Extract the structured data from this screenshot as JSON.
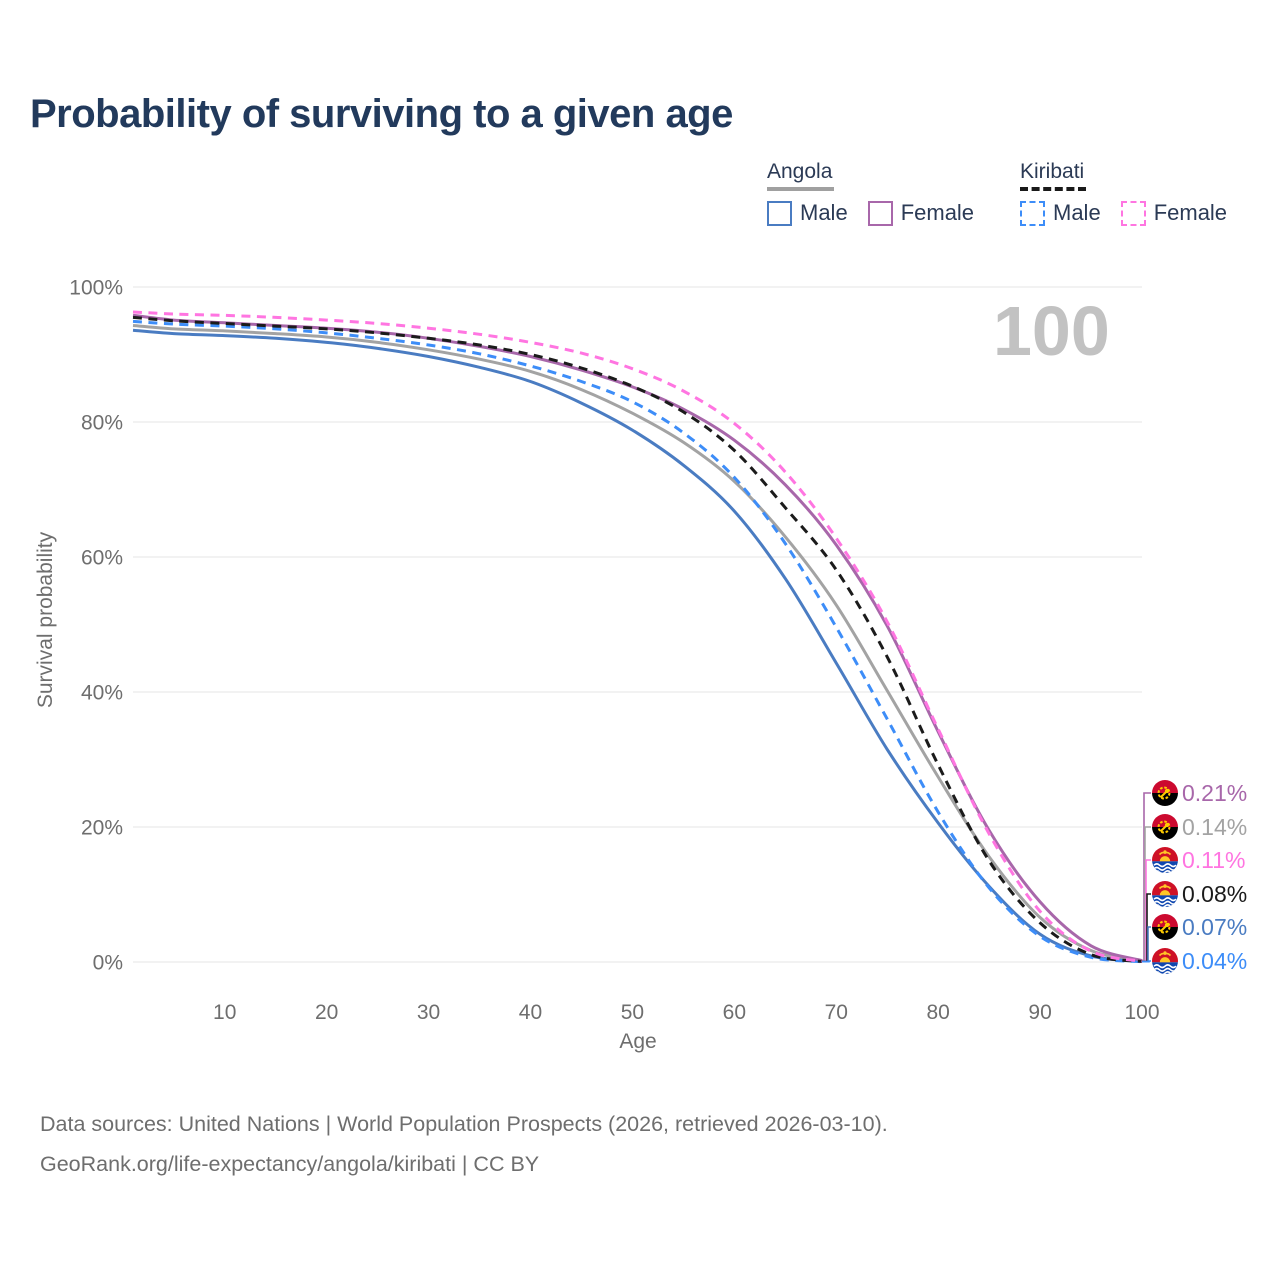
{
  "page": {
    "title": "Probability of surviving to a given age"
  },
  "legend": {
    "groups": [
      {
        "label": "Angola",
        "underline_color": "#a0a0a0",
        "underline_style": "solid",
        "items": [
          {
            "label": "Male",
            "color": "#4a7cc2",
            "dashed": false
          },
          {
            "label": "Female",
            "color": "#a867aa",
            "dashed": false
          }
        ]
      },
      {
        "label": "Kiribati",
        "underline_color": "#1a1a1a",
        "underline_style": "dashed",
        "items": [
          {
            "label": "Male",
            "color": "#3d8df8",
            "dashed": true
          },
          {
            "label": "Female",
            "color": "#ff75e1",
            "dashed": true
          }
        ]
      }
    ]
  },
  "chart_data": {
    "type": "line",
    "title": "Probability of surviving to a given age",
    "xlabel": "Age",
    "ylabel": "Survival probability",
    "watermark": "100",
    "x_domain": [
      1,
      100
    ],
    "ylim": [
      0,
      100
    ],
    "x_ticks": [
      10,
      20,
      30,
      40,
      50,
      60,
      70,
      80,
      90,
      100
    ],
    "y_ticks": [
      0,
      20,
      40,
      60,
      80,
      100
    ],
    "y_tick_suffix": "%",
    "grid": "horizontal",
    "legend_position": "top-right",
    "x": [
      1,
      5,
      10,
      15,
      20,
      25,
      30,
      35,
      40,
      45,
      50,
      55,
      60,
      65,
      70,
      75,
      80,
      85,
      90,
      95,
      100
    ],
    "series": [
      {
        "name": "Angola Male",
        "country": "Angola",
        "sex": "Male",
        "color": "#4a7cc2",
        "dashed": false,
        "end_label": "0.07%",
        "values": [
          93.6,
          93.1,
          92.8,
          92.4,
          91.8,
          90.9,
          89.7,
          88.1,
          86.0,
          82.8,
          78.8,
          73.6,
          66.8,
          56.8,
          44.3,
          31.5,
          20.6,
          11.2,
          4.1,
          0.9,
          0.07
        ]
      },
      {
        "name": "Angola Female",
        "country": "Angola",
        "sex": "Female",
        "color": "#a867aa",
        "dashed": false,
        "end_label": "0.21%",
        "values": [
          95.8,
          95.1,
          94.7,
          94.3,
          93.9,
          93.3,
          92.4,
          91.2,
          89.7,
          87.7,
          85.2,
          81.9,
          77.3,
          70.7,
          61.8,
          49.8,
          34.1,
          19.5,
          8.9,
          2.4,
          0.21
        ]
      },
      {
        "name": "Angola Both sexes",
        "country": "Angola",
        "sex": "Both",
        "color": "#a3a3a3",
        "dashed": false,
        "end_label": "0.14%",
        "values": [
          94.3,
          93.8,
          93.5,
          93.1,
          92.6,
          91.8,
          90.7,
          89.3,
          87.5,
          84.8,
          81.3,
          77.0,
          71.2,
          63.0,
          52.9,
          40.2,
          27.4,
          15.6,
          6.6,
          1.7,
          0.14
        ]
      },
      {
        "name": "Kiribati Male",
        "country": "Kiribati",
        "sex": "Male",
        "color": "#3d8df8",
        "dashed": true,
        "end_label": "0.04%",
        "values": [
          94.9,
          94.5,
          94.2,
          93.8,
          93.2,
          92.4,
          91.4,
          90.1,
          88.3,
          86.0,
          83.0,
          78.4,
          71.8,
          62.0,
          49.6,
          36.0,
          22.2,
          11.0,
          3.8,
          0.7,
          0.04
        ]
      },
      {
        "name": "Kiribati Both sexes",
        "country": "Kiribati",
        "sex": "Both",
        "color": "#1b1b1b",
        "dashed": true,
        "end_label": "0.08%",
        "values": [
          95.5,
          95.0,
          94.6,
          94.2,
          93.8,
          93.2,
          92.4,
          91.4,
          90.0,
          88.0,
          85.3,
          81.5,
          75.8,
          67.3,
          58.1,
          45.2,
          29.2,
          15.0,
          5.8,
          1.1,
          0.08
        ]
      },
      {
        "name": "Kiribati Female",
        "country": "Kiribati",
        "sex": "Female",
        "color": "#ff75e1",
        "dashed": true,
        "end_label": "0.11%",
        "values": [
          96.3,
          96.0,
          95.8,
          95.5,
          95.1,
          94.6,
          93.9,
          93.0,
          91.8,
          90.2,
          87.9,
          84.6,
          79.8,
          72.6,
          62.8,
          50.4,
          34.5,
          19.0,
          7.5,
          1.6,
          0.11
        ]
      }
    ],
    "end_labels": [
      {
        "value": "0.21%",
        "flag": "angola",
        "color": "#a867aa"
      },
      {
        "value": "0.14%",
        "flag": "angola",
        "color": "#a3a3a3"
      },
      {
        "value": "0.11%",
        "flag": "kiribati",
        "color": "#ff75e1"
      },
      {
        "value": "0.08%",
        "flag": "kiribati",
        "color": "#1b1b1b"
      },
      {
        "value": "0.07%",
        "flag": "angola",
        "color": "#4a7cc2"
      },
      {
        "value": "0.04%",
        "flag": "kiribati",
        "color": "#3d8df8"
      }
    ],
    "flag_colors": {
      "angola": {
        "red": "#cc092f",
        "black": "#000000",
        "gold": "#ffcb00"
      },
      "kiribati": {
        "red": "#ce1126",
        "blue": "#0f47af",
        "gold": "#ffc726",
        "white": "#ffffff"
      }
    }
  },
  "footer": {
    "line1": "Data sources: United Nations | World Population Prospects (2026, retrieved 2026-03-10).",
    "line2": "GeoRank.org/life-expectancy/angola/kiribati | CC BY"
  }
}
